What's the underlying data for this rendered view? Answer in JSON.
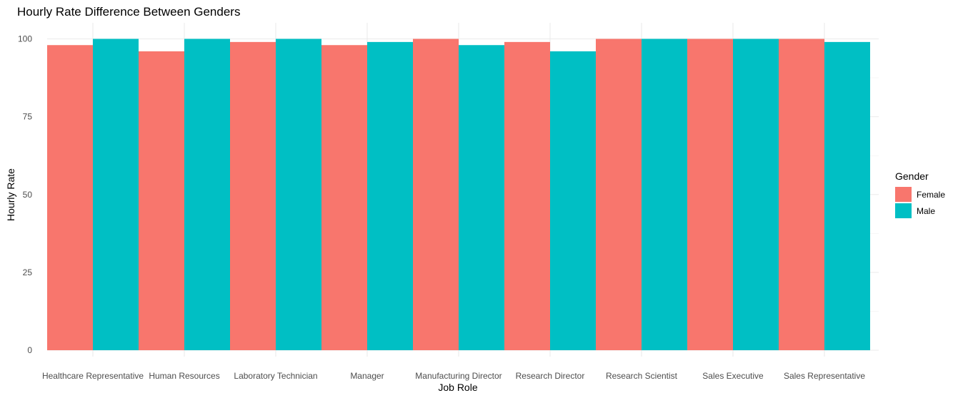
{
  "chart_data": {
    "type": "bar",
    "title": "Hourly Rate Difference Between Genders",
    "xlabel": "Job Role",
    "ylabel": "Hourly Rate",
    "ylim": [
      0,
      100
    ],
    "yticks": [
      0,
      25,
      50,
      75,
      100
    ],
    "grid": true,
    "categories": [
      "Healthcare Representative",
      "Human Resources",
      "Laboratory Technician",
      "Manager",
      "Manufacturing Director",
      "Research Director",
      "Research Scientist",
      "Sales Executive",
      "Sales Representative"
    ],
    "series": [
      {
        "name": "Female",
        "color": "#F8766D",
        "values": [
          98,
          96,
          99,
          98,
          100,
          99,
          100,
          100,
          100
        ]
      },
      {
        "name": "Male",
        "color": "#00BFC4",
        "values": [
          100,
          100,
          100,
          99,
          98,
          96,
          100,
          100,
          99
        ]
      }
    ],
    "legend": {
      "title": "Gender",
      "position": "right"
    }
  }
}
